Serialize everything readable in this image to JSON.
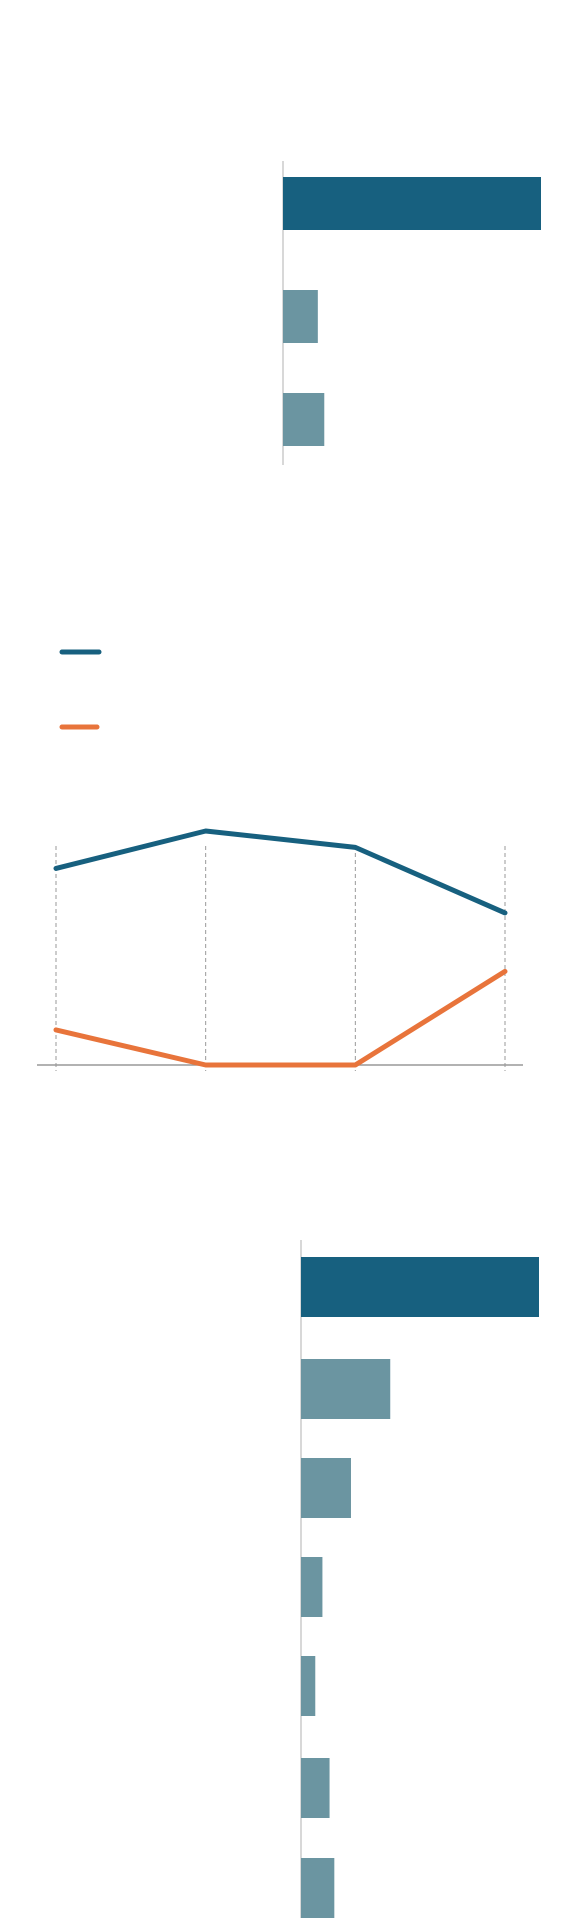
{
  "chart_data": [
    {
      "type": "hbar",
      "values": [
        100,
        13.5,
        16
      ],
      "colors": [
        "#17607f",
        "#6b95a1",
        "#6b95a1"
      ],
      "xlim": [
        0,
        100
      ]
    },
    {
      "type": "line",
      "ylim": [
        0,
        100
      ],
      "series": [
        {
          "color": "#17607f",
          "values": [
            84,
            100,
            93,
            65
          ]
        },
        {
          "color": "#e8743b",
          "values": [
            15,
            0,
            0,
            40
          ]
        }
      ]
    },
    {
      "type": "hbar",
      "values": [
        100,
        37.5,
        21,
        9,
        6,
        12,
        14
      ],
      "colors": [
        "#17607f",
        "#6b95a1",
        "#6b95a1",
        "#6b95a1",
        "#6b95a1",
        "#6b95a1",
        "#6b95a1"
      ],
      "xlim": [
        0,
        100
      ]
    }
  ]
}
